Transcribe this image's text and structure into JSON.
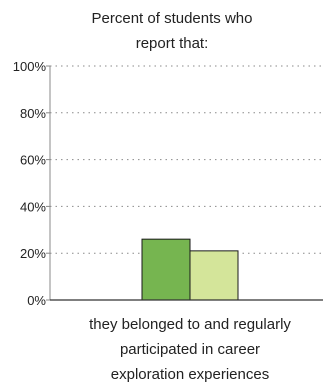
{
  "chart_data": {
    "type": "bar",
    "title_lines": [
      "Percent of students who",
      "report that:"
    ],
    "categories": [
      "they belonged to and regularly participated in career exploration experiences"
    ],
    "category_label_lines": [
      "they belonged to and regularly",
      "participated in career",
      "exploration experiences"
    ],
    "series": [
      {
        "values": [
          26
        ],
        "color": "#76b550"
      },
      {
        "values": [
          21
        ],
        "color": "#d4e59a"
      }
    ],
    "ylim": [
      0,
      100
    ],
    "yticks": [
      0,
      20,
      40,
      60,
      80,
      100
    ],
    "ytick_labels": [
      "0%",
      "20%",
      "40%",
      "60%",
      "80%",
      "100%"
    ],
    "grid": true
  }
}
